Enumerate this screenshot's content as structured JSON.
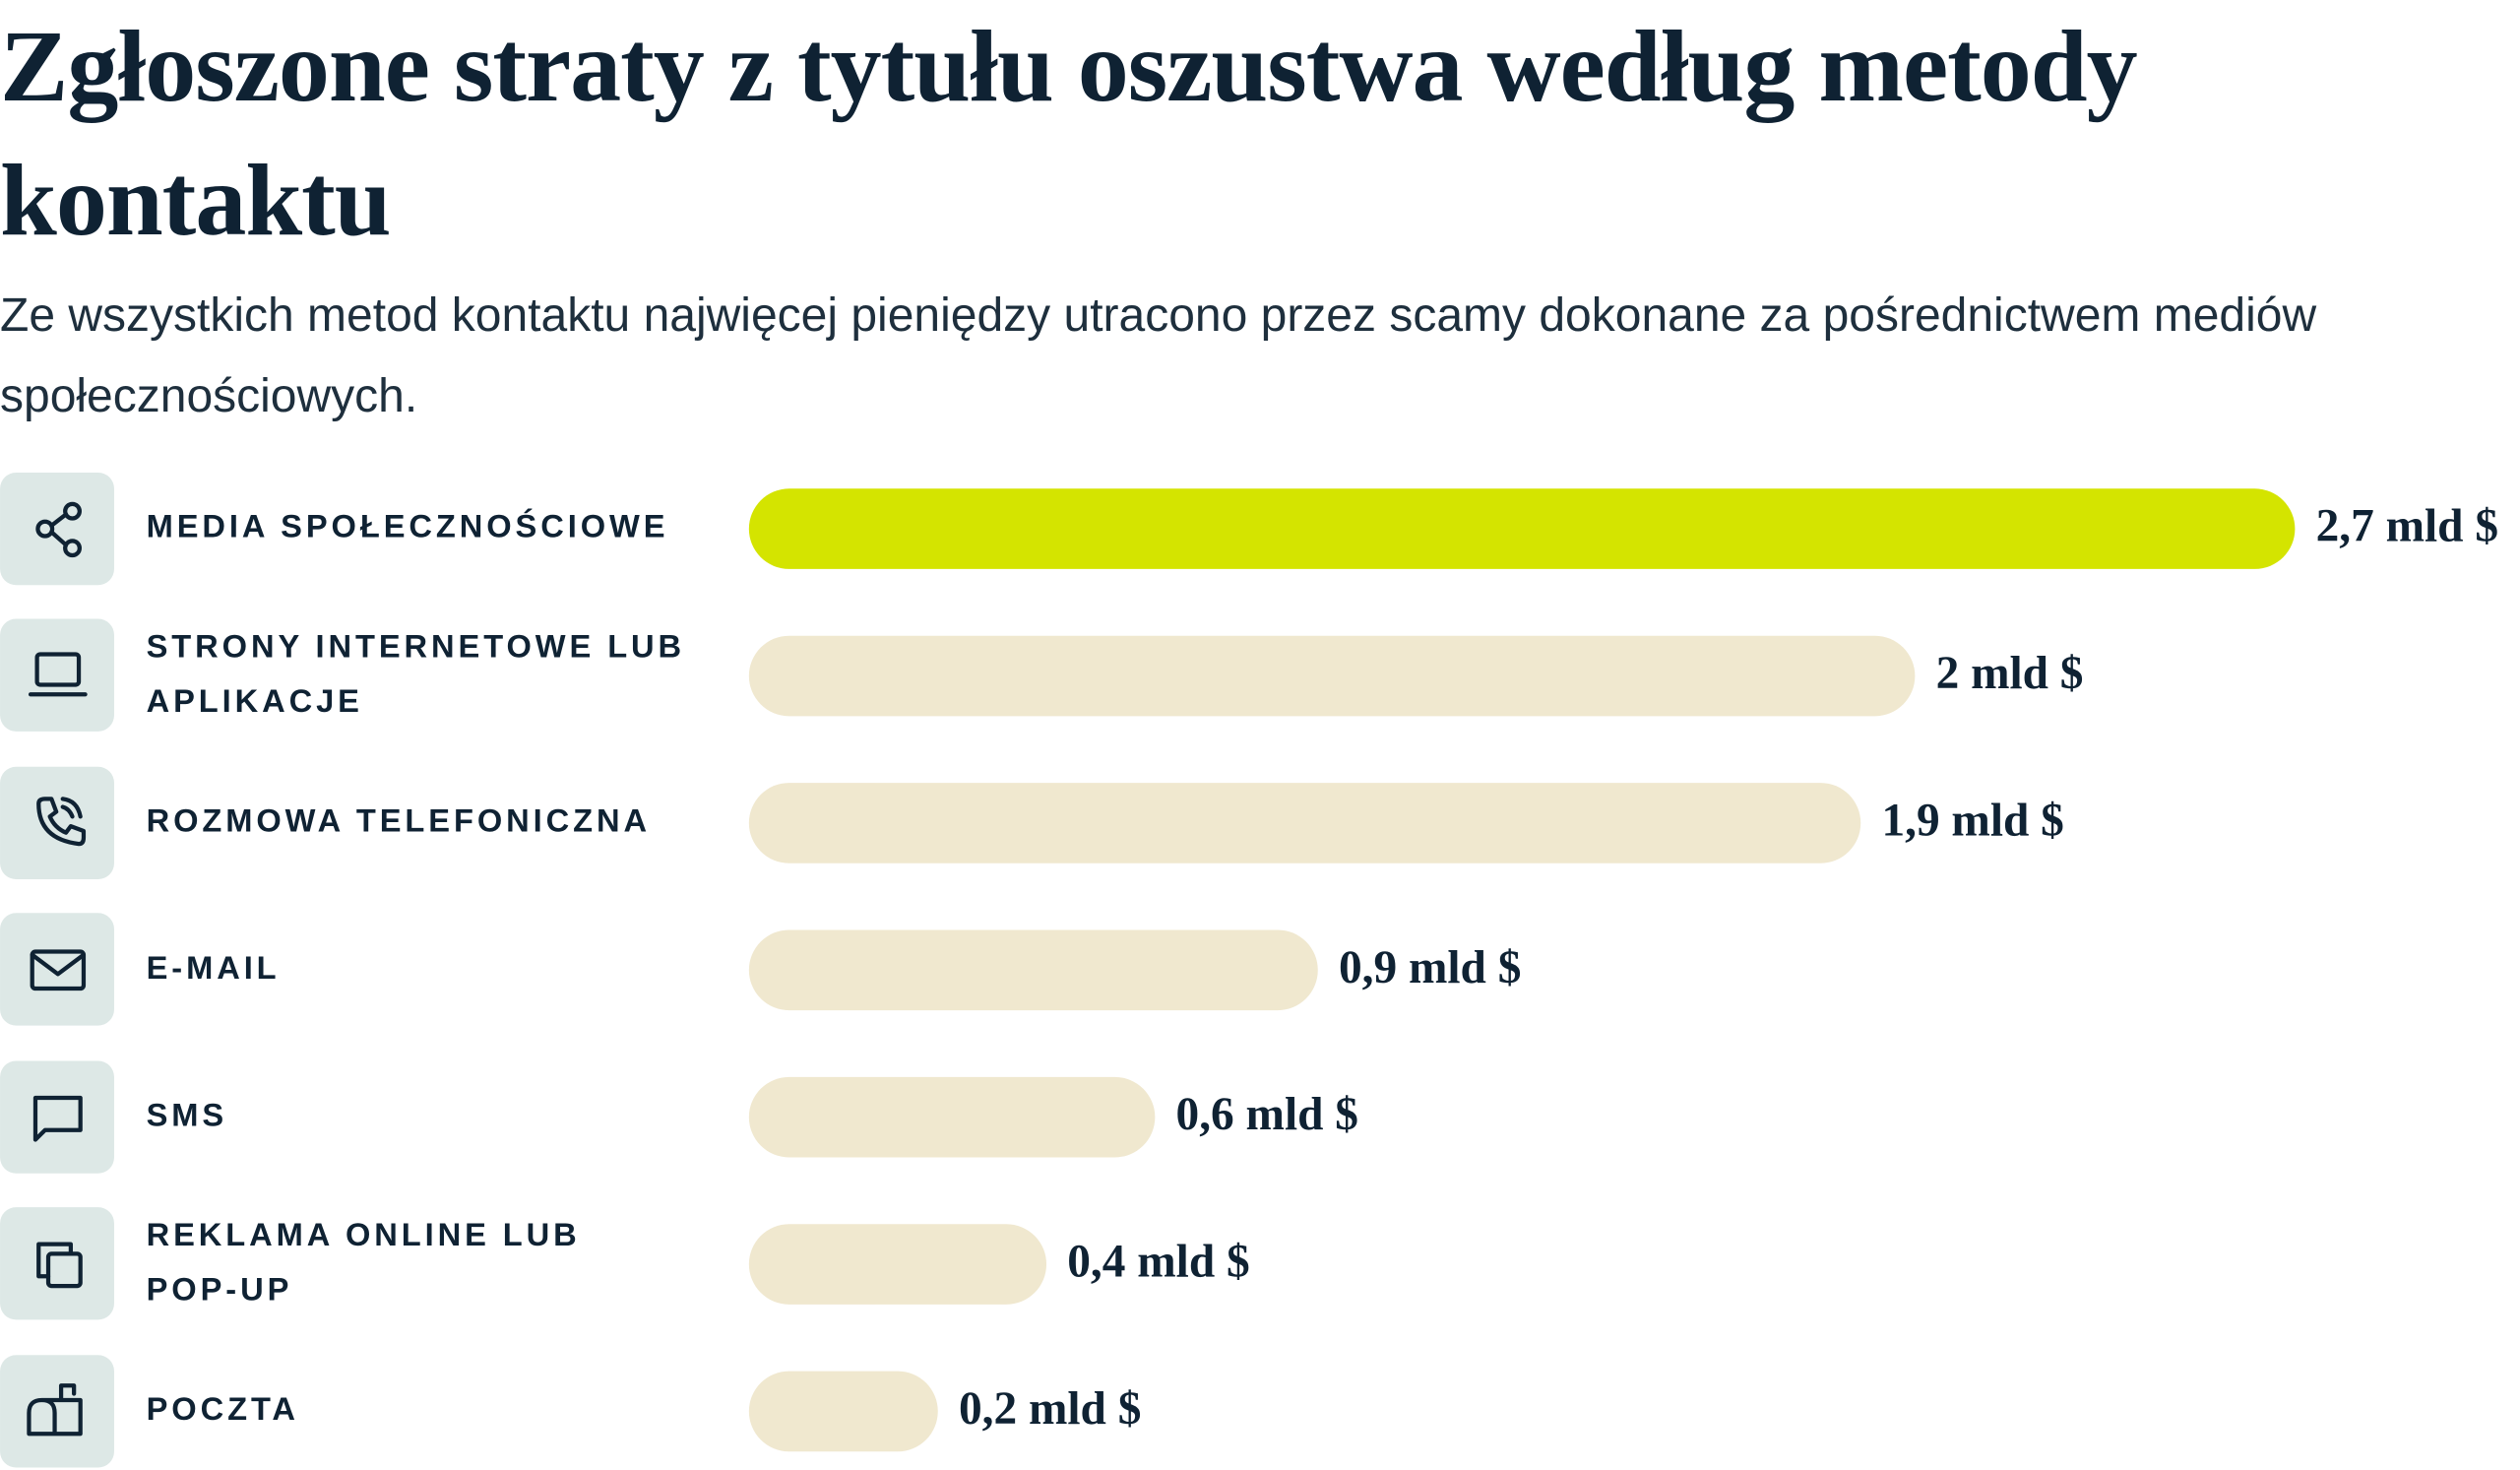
{
  "chart_data": {
    "type": "bar",
    "title": "Zgłoszone straty z tytułu oszustwa według metody kontaktu",
    "subtitle": "Ze wszystkich metod kontaktu najwięcej pieniędzy utracono przez scamy dokonane za pośrednictwem mediów społecznościowych.",
    "categories": [
      "MEDIA SPOŁECZNOŚCIOWE",
      "STRONY INTERNETOWE LUB APLIKACJE",
      "ROZMOWA TELEFONICZNA",
      "E-MAIL",
      "SMS",
      "REKLAMA ONLINE LUB POP-UP",
      "POCZTA"
    ],
    "values": [
      2.7,
      2,
      1.9,
      0.9,
      0.6,
      0.4,
      0.2
    ],
    "value_labels": [
      "2,7 mld $",
      "2 mld $",
      "1,9 mld $",
      "0,9 mld $",
      "0,6 mld $",
      "0,4 mld $",
      "0,2 mld $"
    ],
    "colors": [
      "#d4e400",
      "#f0e8cf",
      "#f0e8cf",
      "#f0e8cf",
      "#f0e8cf",
      "#f0e8cf",
      "#f0e8cf"
    ]
  }
}
